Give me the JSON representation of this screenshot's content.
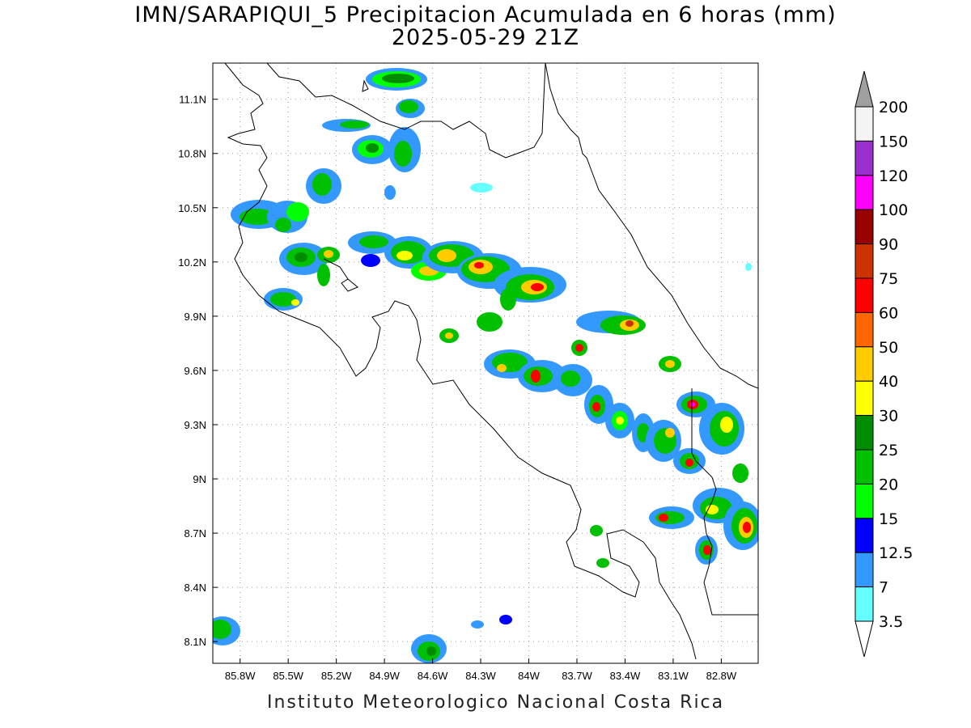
{
  "title": {
    "line1": "IMN/SARAPIQUI_5 Precipitacion Acumulada en 6 horas (mm)",
    "line2": "2025-05-29 21Z"
  },
  "footer": "Instituto Meteorologico Nacional Costa Rica",
  "map": {
    "lon_range": [
      -85.97,
      -82.57
    ],
    "lat_range": [
      7.98,
      11.3
    ],
    "lon_ticks": [
      "85.8W",
      "85.5W",
      "85.2W",
      "84.9W",
      "84.6W",
      "84.3W",
      "84W",
      "83.7W",
      "83.4W",
      "83.1W",
      "82.8W"
    ],
    "lat_ticks": [
      "11.1N",
      "10.8N",
      "10.5N",
      "10.2N",
      "9.9N",
      "9.6N",
      "9.3N",
      "9N",
      "8.7N",
      "8.4N",
      "8.1N"
    ],
    "grid": true
  },
  "colorbar": {
    "labels": [
      "200",
      "150",
      "120",
      "100",
      "90",
      "75",
      "60",
      "50",
      "40",
      "30",
      "25",
      "20",
      "15",
      "12.5",
      "7",
      "3.5"
    ],
    "colors": [
      "#f4f4f4",
      "#9b30d0",
      "#ff00ff",
      "#990000",
      "#cc3300",
      "#ff0000",
      "#ff6600",
      "#ffcc00",
      "#ffff00",
      "#008c00",
      "#00c000",
      "#00ff00",
      "#0000ff",
      "#3399ff",
      "#66ffff"
    ],
    "over_color": "#a0a0a0",
    "under_color": "#ffffff"
  }
}
